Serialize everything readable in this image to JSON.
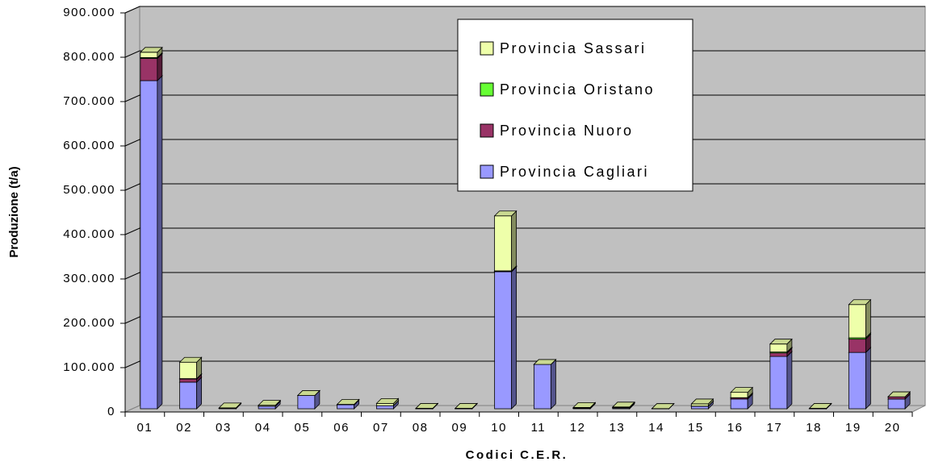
{
  "chart_data": {
    "type": "bar3d_stacked",
    "y_label": "Produzione (t/a)",
    "x_label": "Codici C.E.R.",
    "categories": [
      "01",
      "02",
      "03",
      "04",
      "05",
      "06",
      "07",
      "08",
      "09",
      "10",
      "11",
      "12",
      "13",
      "14",
      "15",
      "16",
      "17",
      "18",
      "19",
      "20"
    ],
    "series": [
      {
        "name": "Provincia Cagliari",
        "color": "#9999ff",
        "values": [
          740000,
          60000,
          1000,
          6000,
          30000,
          9000,
          7000,
          500,
          500,
          309000,
          100000,
          1000,
          2000,
          500,
          6000,
          22000,
          118000,
          500,
          127000,
          22000
        ]
      },
      {
        "name": "Provincia Nuoro",
        "color": "#993366",
        "values": [
          50000,
          7000,
          0,
          0,
          0,
          0,
          0,
          0,
          0,
          1000,
          0,
          1000,
          1000,
          0,
          0,
          3000,
          8000,
          0,
          30000,
          5000
        ]
      },
      {
        "name": "Provincia Oristano",
        "color": "#66ff33",
        "values": [
          2000,
          1000,
          0,
          0,
          0,
          0,
          0,
          0,
          0,
          1000,
          0,
          0,
          0,
          0,
          0,
          0,
          2000,
          0,
          3000,
          0
        ]
      },
      {
        "name": "Provincia Sassari",
        "color": "#eeffaa",
        "values": [
          12000,
          37000,
          1000,
          2000,
          0,
          1000,
          5000,
          500,
          500,
          124000,
          0,
          1000,
          1000,
          0,
          5000,
          12000,
          18000,
          500,
          75000,
          0
        ]
      }
    ],
    "ylim": [
      0,
      900000
    ],
    "yticks": [
      0,
      {
        "value": 100000,
        "label": "100.000"
      },
      {
        "value": 200000,
        "label": "200.000"
      },
      {
        "value": 300000,
        "label": "300.000"
      },
      {
        "value": 400000,
        "label": "400.000"
      },
      {
        "value": 500000,
        "label": "500.000"
      },
      {
        "value": 600000,
        "label": "600.000"
      },
      {
        "value": 700000,
        "label": "700.000"
      },
      {
        "value": 800000,
        "label": "800.000"
      },
      {
        "value": 900000,
        "label": "900.000"
      }
    ],
    "grid": true,
    "legend": "top-right"
  }
}
